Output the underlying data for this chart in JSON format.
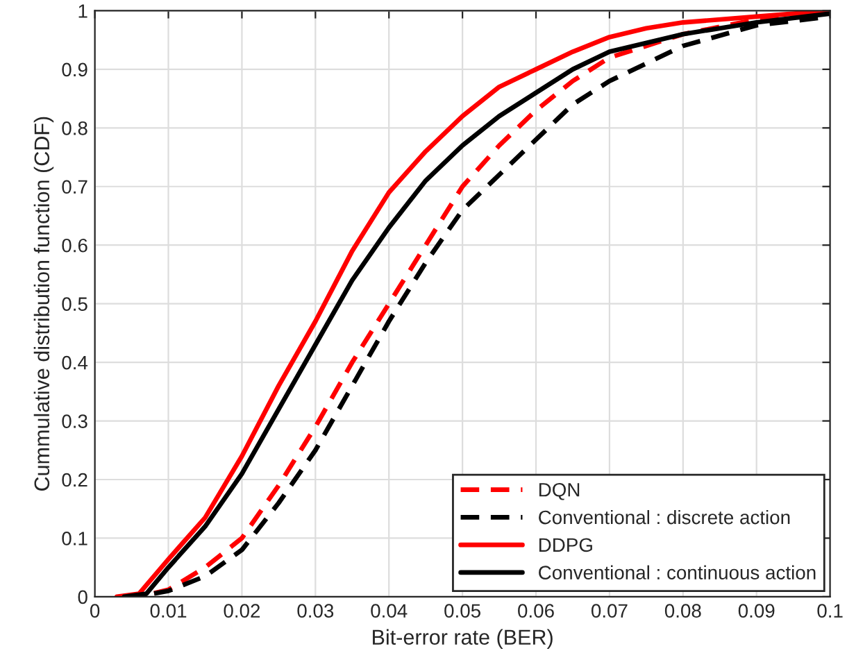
{
  "chart_data": {
    "type": "line",
    "xlabel": "Bit-error rate (BER)",
    "ylabel": "Cummulative distribution function (CDF)",
    "xlim": [
      0,
      0.1
    ],
    "ylim": [
      0,
      1
    ],
    "xticks": [
      0,
      0.01,
      0.02,
      0.03,
      0.04,
      0.05,
      0.06,
      0.07,
      0.08,
      0.09,
      0.1
    ],
    "yticks": [
      0,
      0.1,
      0.2,
      0.3,
      0.4,
      0.5,
      0.6,
      0.7,
      0.8,
      0.9,
      1
    ],
    "grid": true,
    "legend": "bottom right",
    "series": [
      {
        "name": "DQN",
        "color": "#ff0000",
        "line_style": "dashed",
        "x": [
          0.004,
          0.007,
          0.01,
          0.015,
          0.02,
          0.025,
          0.03,
          0.035,
          0.04,
          0.045,
          0.05,
          0.055,
          0.06,
          0.065,
          0.07,
          0.08,
          0.09,
          0.1
        ],
        "values": [
          0,
          0.003,
          0.012,
          0.05,
          0.1,
          0.19,
          0.29,
          0.4,
          0.5,
          0.6,
          0.7,
          0.77,
          0.83,
          0.88,
          0.92,
          0.96,
          0.985,
          1
        ]
      },
      {
        "name": "Conventional : discrete action",
        "color": "#000000",
        "line_style": "dashed",
        "x": [
          0.004,
          0.007,
          0.01,
          0.015,
          0.02,
          0.025,
          0.03,
          0.035,
          0.04,
          0.045,
          0.05,
          0.055,
          0.06,
          0.065,
          0.07,
          0.08,
          0.09,
          0.1
        ],
        "values": [
          0,
          0.003,
          0.01,
          0.035,
          0.08,
          0.16,
          0.25,
          0.36,
          0.47,
          0.57,
          0.66,
          0.72,
          0.78,
          0.84,
          0.88,
          0.94,
          0.975,
          0.99
        ]
      },
      {
        "name": "DDPG",
        "color": "#ff0000",
        "line_style": "solid",
        "x": [
          0.003,
          0.006,
          0.01,
          0.015,
          0.02,
          0.025,
          0.03,
          0.035,
          0.04,
          0.045,
          0.05,
          0.055,
          0.06,
          0.065,
          0.07,
          0.075,
          0.08,
          0.09,
          0.1
        ],
        "values": [
          0,
          0.005,
          0.064,
          0.135,
          0.24,
          0.36,
          0.47,
          0.59,
          0.69,
          0.76,
          0.82,
          0.87,
          0.9,
          0.93,
          0.955,
          0.97,
          0.98,
          0.99,
          1
        ]
      },
      {
        "name": "Conventional : continuous action",
        "color": "#000000",
        "line_style": "solid",
        "x": [
          0.004,
          0.007,
          0.01,
          0.015,
          0.02,
          0.025,
          0.03,
          0.035,
          0.04,
          0.045,
          0.05,
          0.055,
          0.06,
          0.065,
          0.07,
          0.08,
          0.09,
          0.1
        ],
        "values": [
          0,
          0.005,
          0.05,
          0.12,
          0.21,
          0.32,
          0.43,
          0.54,
          0.63,
          0.71,
          0.77,
          0.82,
          0.86,
          0.9,
          0.93,
          0.96,
          0.98,
          0.995
        ]
      }
    ]
  }
}
